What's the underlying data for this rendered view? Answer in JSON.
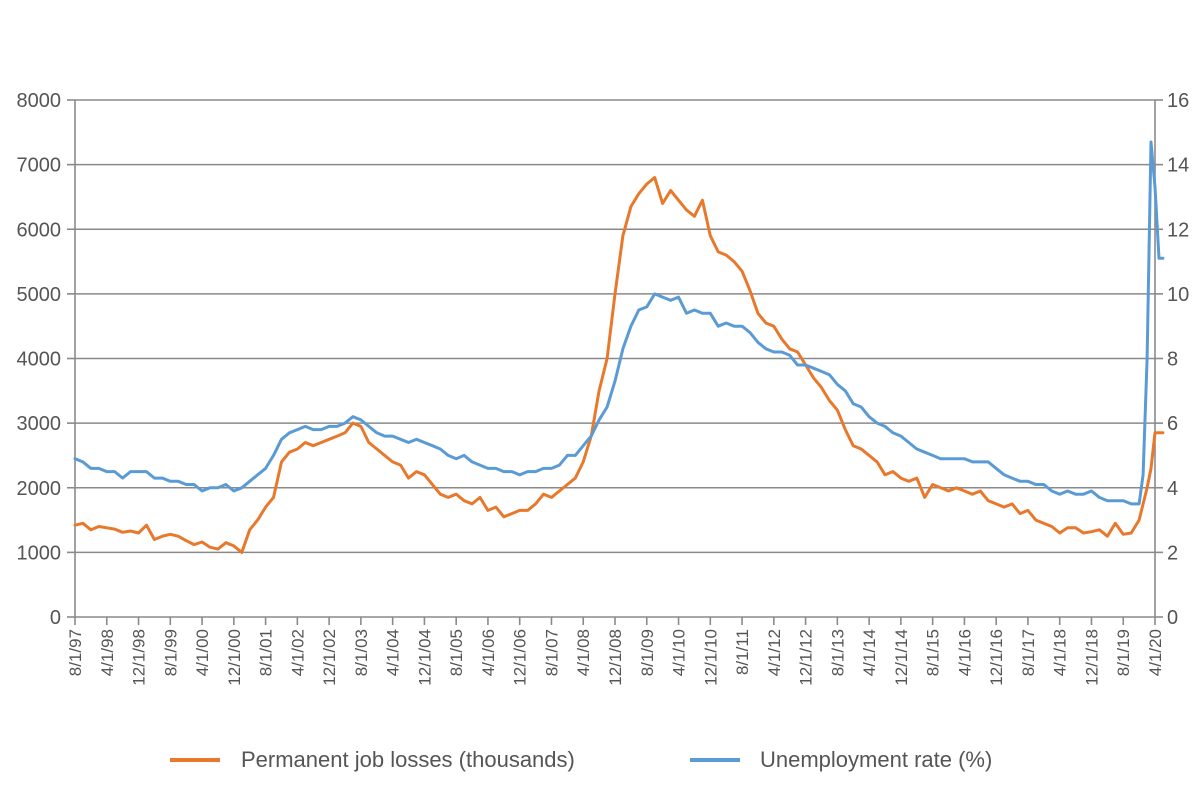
{
  "chart_data": {
    "type": "line",
    "title": "",
    "xlabel": "",
    "ylabel": "",
    "y2label": "",
    "x_ticks": [
      "8/1/97",
      "4/1/98",
      "12/1/98",
      "8/1/99",
      "4/1/00",
      "12/1/00",
      "8/1/01",
      "4/1/02",
      "12/1/02",
      "8/1/03",
      "4/1/04",
      "12/1/04",
      "8/1/05",
      "4/1/06",
      "12/1/06",
      "8/1/07",
      "4/1/08",
      "12/1/08",
      "8/1/09",
      "4/1/10",
      "12/1/10",
      "8/1/11",
      "4/1/12",
      "12/1/12",
      "8/1/13",
      "4/1/14",
      "12/1/14",
      "8/1/15",
      "4/1/16",
      "12/1/16",
      "8/1/17",
      "4/1/18",
      "12/1/18",
      "8/1/19",
      "4/1/20"
    ],
    "x_start": "1997-08",
    "ylim": [
      0,
      8000
    ],
    "y_ticks": [
      0,
      1000,
      2000,
      3000,
      4000,
      5000,
      6000,
      7000,
      8000
    ],
    "y2lim": [
      0,
      16
    ],
    "y2_ticks": [
      0,
      2,
      4,
      6,
      8,
      10,
      12,
      14,
      16
    ],
    "grid": "horizontal",
    "legend_position": "bottom",
    "colors": {
      "job_losses": "#e8792c",
      "unemployment": "#5b9bd5",
      "grid": "#8a8a8a"
    },
    "series": [
      {
        "name": "Permanent job losses (thousands)",
        "axis": "left",
        "points": [
          [
            "1997-08",
            1420
          ],
          [
            "1997-10",
            1450
          ],
          [
            "1997-12",
            1350
          ],
          [
            "1998-02",
            1400
          ],
          [
            "1998-04",
            1380
          ],
          [
            "1998-06",
            1360
          ],
          [
            "1998-08",
            1310
          ],
          [
            "1998-10",
            1330
          ],
          [
            "1998-12",
            1300
          ],
          [
            "1999-02",
            1420
          ],
          [
            "1999-04",
            1200
          ],
          [
            "1999-06",
            1250
          ],
          [
            "1999-08",
            1280
          ],
          [
            "1999-10",
            1250
          ],
          [
            "1999-12",
            1180
          ],
          [
            "2000-02",
            1120
          ],
          [
            "2000-04",
            1160
          ],
          [
            "2000-06",
            1080
          ],
          [
            "2000-08",
            1050
          ],
          [
            "2000-10",
            1150
          ],
          [
            "2000-12",
            1100
          ],
          [
            "2001-02",
            1000
          ],
          [
            "2001-04",
            1350
          ],
          [
            "2001-06",
            1500
          ],
          [
            "2001-08",
            1700
          ],
          [
            "2001-10",
            1850
          ],
          [
            "2001-12",
            2400
          ],
          [
            "2002-02",
            2550
          ],
          [
            "2002-04",
            2600
          ],
          [
            "2002-06",
            2700
          ],
          [
            "2002-08",
            2650
          ],
          [
            "2002-10",
            2700
          ],
          [
            "2002-12",
            2750
          ],
          [
            "2003-02",
            2800
          ],
          [
            "2003-04",
            2850
          ],
          [
            "2003-06",
            3000
          ],
          [
            "2003-08",
            2950
          ],
          [
            "2003-10",
            2700
          ],
          [
            "2003-12",
            2600
          ],
          [
            "2004-02",
            2500
          ],
          [
            "2004-04",
            2400
          ],
          [
            "2004-06",
            2350
          ],
          [
            "2004-08",
            2150
          ],
          [
            "2004-10",
            2250
          ],
          [
            "2004-12",
            2200
          ],
          [
            "2005-02",
            2050
          ],
          [
            "2005-04",
            1900
          ],
          [
            "2005-06",
            1850
          ],
          [
            "2005-08",
            1900
          ],
          [
            "2005-10",
            1800
          ],
          [
            "2005-12",
            1750
          ],
          [
            "2006-02",
            1850
          ],
          [
            "2006-04",
            1650
          ],
          [
            "2006-06",
            1700
          ],
          [
            "2006-08",
            1550
          ],
          [
            "2006-10",
            1600
          ],
          [
            "2006-12",
            1650
          ],
          [
            "2007-02",
            1650
          ],
          [
            "2007-04",
            1750
          ],
          [
            "2007-06",
            1900
          ],
          [
            "2007-08",
            1850
          ],
          [
            "2007-10",
            1950
          ],
          [
            "2007-12",
            2050
          ],
          [
            "2008-02",
            2150
          ],
          [
            "2008-04",
            2400
          ],
          [
            "2008-06",
            2800
          ],
          [
            "2008-08",
            3500
          ],
          [
            "2008-10",
            4000
          ],
          [
            "2008-12",
            5000
          ],
          [
            "2009-02",
            5900
          ],
          [
            "2009-04",
            6350
          ],
          [
            "2009-06",
            6550
          ],
          [
            "2009-08",
            6700
          ],
          [
            "2009-10",
            6800
          ],
          [
            "2009-12",
            6400
          ],
          [
            "2010-02",
            6600
          ],
          [
            "2010-04",
            6450
          ],
          [
            "2010-06",
            6300
          ],
          [
            "2010-08",
            6200
          ],
          [
            "2010-10",
            6450
          ],
          [
            "2010-12",
            5900
          ],
          [
            "2011-02",
            5650
          ],
          [
            "2011-04",
            5600
          ],
          [
            "2011-06",
            5500
          ],
          [
            "2011-08",
            5350
          ],
          [
            "2011-10",
            5050
          ],
          [
            "2011-12",
            4700
          ],
          [
            "2012-02",
            4550
          ],
          [
            "2012-04",
            4500
          ],
          [
            "2012-06",
            4300
          ],
          [
            "2012-08",
            4150
          ],
          [
            "2012-10",
            4100
          ],
          [
            "2012-12",
            3900
          ],
          [
            "2013-02",
            3700
          ],
          [
            "2013-04",
            3550
          ],
          [
            "2013-06",
            3350
          ],
          [
            "2013-08",
            3200
          ],
          [
            "2013-10",
            2900
          ],
          [
            "2013-12",
            2650
          ],
          [
            "2014-02",
            2600
          ],
          [
            "2014-04",
            2500
          ],
          [
            "2014-06",
            2400
          ],
          [
            "2014-08",
            2200
          ],
          [
            "2014-10",
            2250
          ],
          [
            "2014-12",
            2150
          ],
          [
            "2015-02",
            2100
          ],
          [
            "2015-04",
            2150
          ],
          [
            "2015-06",
            1850
          ],
          [
            "2015-08",
            2050
          ],
          [
            "2015-10",
            2000
          ],
          [
            "2015-12",
            1950
          ],
          [
            "2016-02",
            2000
          ],
          [
            "2016-04",
            1950
          ],
          [
            "2016-06",
            1900
          ],
          [
            "2016-08",
            1950
          ],
          [
            "2016-10",
            1800
          ],
          [
            "2016-12",
            1750
          ],
          [
            "2017-02",
            1700
          ],
          [
            "2017-04",
            1750
          ],
          [
            "2017-06",
            1600
          ],
          [
            "2017-08",
            1650
          ],
          [
            "2017-10",
            1500
          ],
          [
            "2017-12",
            1450
          ],
          [
            "2018-02",
            1400
          ],
          [
            "2018-04",
            1300
          ],
          [
            "2018-06",
            1380
          ],
          [
            "2018-08",
            1380
          ],
          [
            "2018-10",
            1300
          ],
          [
            "2018-12",
            1320
          ],
          [
            "2019-02",
            1350
          ],
          [
            "2019-04",
            1250
          ],
          [
            "2019-06",
            1450
          ],
          [
            "2019-08",
            1280
          ],
          [
            "2019-10",
            1300
          ],
          [
            "2019-12",
            1500
          ],
          [
            "2020-02",
            2000
          ],
          [
            "2020-03",
            2300
          ],
          [
            "2020-04",
            2850
          ],
          [
            "2020-06",
            2850
          ]
        ]
      },
      {
        "name": "Unemployment rate (%)",
        "axis": "right",
        "points": [
          [
            "1997-08",
            4.9
          ],
          [
            "1997-10",
            4.8
          ],
          [
            "1997-12",
            4.6
          ],
          [
            "1998-02",
            4.6
          ],
          [
            "1998-04",
            4.5
          ],
          [
            "1998-06",
            4.5
          ],
          [
            "1998-08",
            4.3
          ],
          [
            "1998-10",
            4.5
          ],
          [
            "1998-12",
            4.5
          ],
          [
            "1999-02",
            4.5
          ],
          [
            "1999-04",
            4.3
          ],
          [
            "1999-06",
            4.3
          ],
          [
            "1999-08",
            4.2
          ],
          [
            "1999-10",
            4.2
          ],
          [
            "1999-12",
            4.1
          ],
          [
            "2000-02",
            4.1
          ],
          [
            "2000-04",
            3.9
          ],
          [
            "2000-06",
            4.0
          ],
          [
            "2000-08",
            4.0
          ],
          [
            "2000-10",
            4.1
          ],
          [
            "2000-12",
            3.9
          ],
          [
            "2001-02",
            4.0
          ],
          [
            "2001-04",
            4.2
          ],
          [
            "2001-06",
            4.4
          ],
          [
            "2001-08",
            4.6
          ],
          [
            "2001-10",
            5.0
          ],
          [
            "2001-12",
            5.5
          ],
          [
            "2002-02",
            5.7
          ],
          [
            "2002-04",
            5.8
          ],
          [
            "2002-06",
            5.9
          ],
          [
            "2002-08",
            5.8
          ],
          [
            "2002-10",
            5.8
          ],
          [
            "2002-12",
            5.9
          ],
          [
            "2003-02",
            5.9
          ],
          [
            "2003-04",
            6.0
          ],
          [
            "2003-06",
            6.2
          ],
          [
            "2003-08",
            6.1
          ],
          [
            "2003-10",
            5.9
          ],
          [
            "2003-12",
            5.7
          ],
          [
            "2004-02",
            5.6
          ],
          [
            "2004-04",
            5.6
          ],
          [
            "2004-06",
            5.5
          ],
          [
            "2004-08",
            5.4
          ],
          [
            "2004-10",
            5.5
          ],
          [
            "2004-12",
            5.4
          ],
          [
            "2005-02",
            5.3
          ],
          [
            "2005-04",
            5.2
          ],
          [
            "2005-06",
            5.0
          ],
          [
            "2005-08",
            4.9
          ],
          [
            "2005-10",
            5.0
          ],
          [
            "2005-12",
            4.8
          ],
          [
            "2006-02",
            4.7
          ],
          [
            "2006-04",
            4.6
          ],
          [
            "2006-06",
            4.6
          ],
          [
            "2006-08",
            4.5
          ],
          [
            "2006-10",
            4.5
          ],
          [
            "2006-12",
            4.4
          ],
          [
            "2007-02",
            4.5
          ],
          [
            "2007-04",
            4.5
          ],
          [
            "2007-06",
            4.6
          ],
          [
            "2007-08",
            4.6
          ],
          [
            "2007-10",
            4.7
          ],
          [
            "2007-12",
            5.0
          ],
          [
            "2008-02",
            5.0
          ],
          [
            "2008-04",
            5.3
          ],
          [
            "2008-06",
            5.6
          ],
          [
            "2008-08",
            6.1
          ],
          [
            "2008-10",
            6.5
          ],
          [
            "2008-12",
            7.3
          ],
          [
            "2009-02",
            8.3
          ],
          [
            "2009-04",
            9.0
          ],
          [
            "2009-06",
            9.5
          ],
          [
            "2009-08",
            9.6
          ],
          [
            "2009-10",
            10.0
          ],
          [
            "2009-12",
            9.9
          ],
          [
            "2010-02",
            9.8
          ],
          [
            "2010-04",
            9.9
          ],
          [
            "2010-06",
            9.4
          ],
          [
            "2010-08",
            9.5
          ],
          [
            "2010-10",
            9.4
          ],
          [
            "2010-12",
            9.4
          ],
          [
            "2011-02",
            9.0
          ],
          [
            "2011-04",
            9.1
          ],
          [
            "2011-06",
            9.0
          ],
          [
            "2011-08",
            9.0
          ],
          [
            "2011-10",
            8.8
          ],
          [
            "2011-12",
            8.5
          ],
          [
            "2012-02",
            8.3
          ],
          [
            "2012-04",
            8.2
          ],
          [
            "2012-06",
            8.2
          ],
          [
            "2012-08",
            8.1
          ],
          [
            "2012-10",
            7.8
          ],
          [
            "2012-12",
            7.8
          ],
          [
            "2013-02",
            7.7
          ],
          [
            "2013-04",
            7.6
          ],
          [
            "2013-06",
            7.5
          ],
          [
            "2013-08",
            7.2
          ],
          [
            "2013-10",
            7.0
          ],
          [
            "2013-12",
            6.6
          ],
          [
            "2014-02",
            6.5
          ],
          [
            "2014-04",
            6.2
          ],
          [
            "2014-06",
            6.0
          ],
          [
            "2014-08",
            5.9
          ],
          [
            "2014-10",
            5.7
          ],
          [
            "2014-12",
            5.6
          ],
          [
            "2015-02",
            5.4
          ],
          [
            "2015-04",
            5.2
          ],
          [
            "2015-06",
            5.1
          ],
          [
            "2015-08",
            5.0
          ],
          [
            "2015-10",
            4.9
          ],
          [
            "2015-12",
            4.9
          ],
          [
            "2016-02",
            4.9
          ],
          [
            "2016-04",
            4.9
          ],
          [
            "2016-06",
            4.8
          ],
          [
            "2016-08",
            4.8
          ],
          [
            "2016-10",
            4.8
          ],
          [
            "2016-12",
            4.6
          ],
          [
            "2017-02",
            4.4
          ],
          [
            "2017-04",
            4.3
          ],
          [
            "2017-06",
            4.2
          ],
          [
            "2017-08",
            4.2
          ],
          [
            "2017-10",
            4.1
          ],
          [
            "2017-12",
            4.1
          ],
          [
            "2018-02",
            3.9
          ],
          [
            "2018-04",
            3.8
          ],
          [
            "2018-06",
            3.9
          ],
          [
            "2018-08",
            3.8
          ],
          [
            "2018-10",
            3.8
          ],
          [
            "2018-12",
            3.9
          ],
          [
            "2019-02",
            3.7
          ],
          [
            "2019-04",
            3.6
          ],
          [
            "2019-06",
            3.6
          ],
          [
            "2019-08",
            3.6
          ],
          [
            "2019-10",
            3.5
          ],
          [
            "2019-12",
            3.5
          ],
          [
            "2020-01",
            4.4
          ],
          [
            "2020-02",
            8.0
          ],
          [
            "2020-03",
            14.7
          ],
          [
            "2020-04",
            13.3
          ],
          [
            "2020-05",
            11.1
          ],
          [
            "2020-06",
            11.1
          ]
        ]
      }
    ]
  }
}
